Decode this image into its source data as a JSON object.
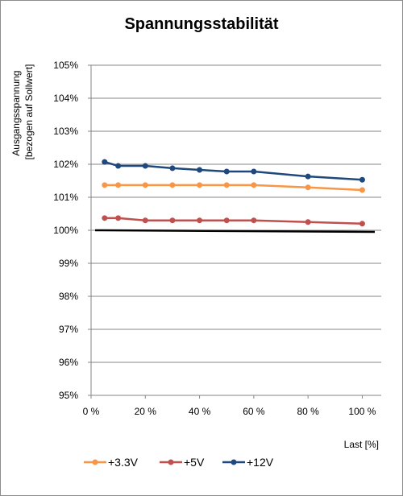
{
  "chart_data": {
    "type": "line",
    "title": "Spannungsstabilität",
    "xlabel": "Last [%]",
    "ylabel_lines": [
      "Ausgangsspannung",
      "[bezogen auf Sollwert]"
    ],
    "x_ticks": [
      "0 %",
      "20 %",
      "40 %",
      "60 %",
      "80 %",
      "100 %"
    ],
    "y_ticks": [
      "95%",
      "96%",
      "97%",
      "98%",
      "99%",
      "100%",
      "101%",
      "102%",
      "103%",
      "104%",
      "105%"
    ],
    "xlim": [
      0,
      107
    ],
    "ylim": [
      95,
      105
    ],
    "grid": "horizontal",
    "legend": "bottom",
    "reference_line": {
      "x": [
        0,
        107
      ],
      "y": [
        100.0,
        99.95
      ],
      "color": "#000000"
    },
    "series": [
      {
        "name": "+3.3V",
        "color": "#f79646",
        "x": [
          5,
          10,
          20,
          30,
          40,
          50,
          60,
          80,
          100
        ],
        "y": [
          101.37,
          101.37,
          101.37,
          101.37,
          101.37,
          101.37,
          101.37,
          101.3,
          101.22
        ]
      },
      {
        "name": "+5V",
        "color": "#c0504d",
        "x": [
          5,
          10,
          20,
          30,
          40,
          50,
          60,
          80,
          100
        ],
        "y": [
          100.37,
          100.37,
          100.3,
          100.3,
          100.3,
          100.3,
          100.3,
          100.25,
          100.2
        ]
      },
      {
        "name": "+12V",
        "color": "#1f497d",
        "x": [
          5,
          10,
          20,
          30,
          40,
          50,
          60,
          80,
          100
        ],
        "y": [
          102.07,
          101.95,
          101.95,
          101.88,
          101.83,
          101.78,
          101.78,
          101.63,
          101.53
        ]
      }
    ]
  }
}
